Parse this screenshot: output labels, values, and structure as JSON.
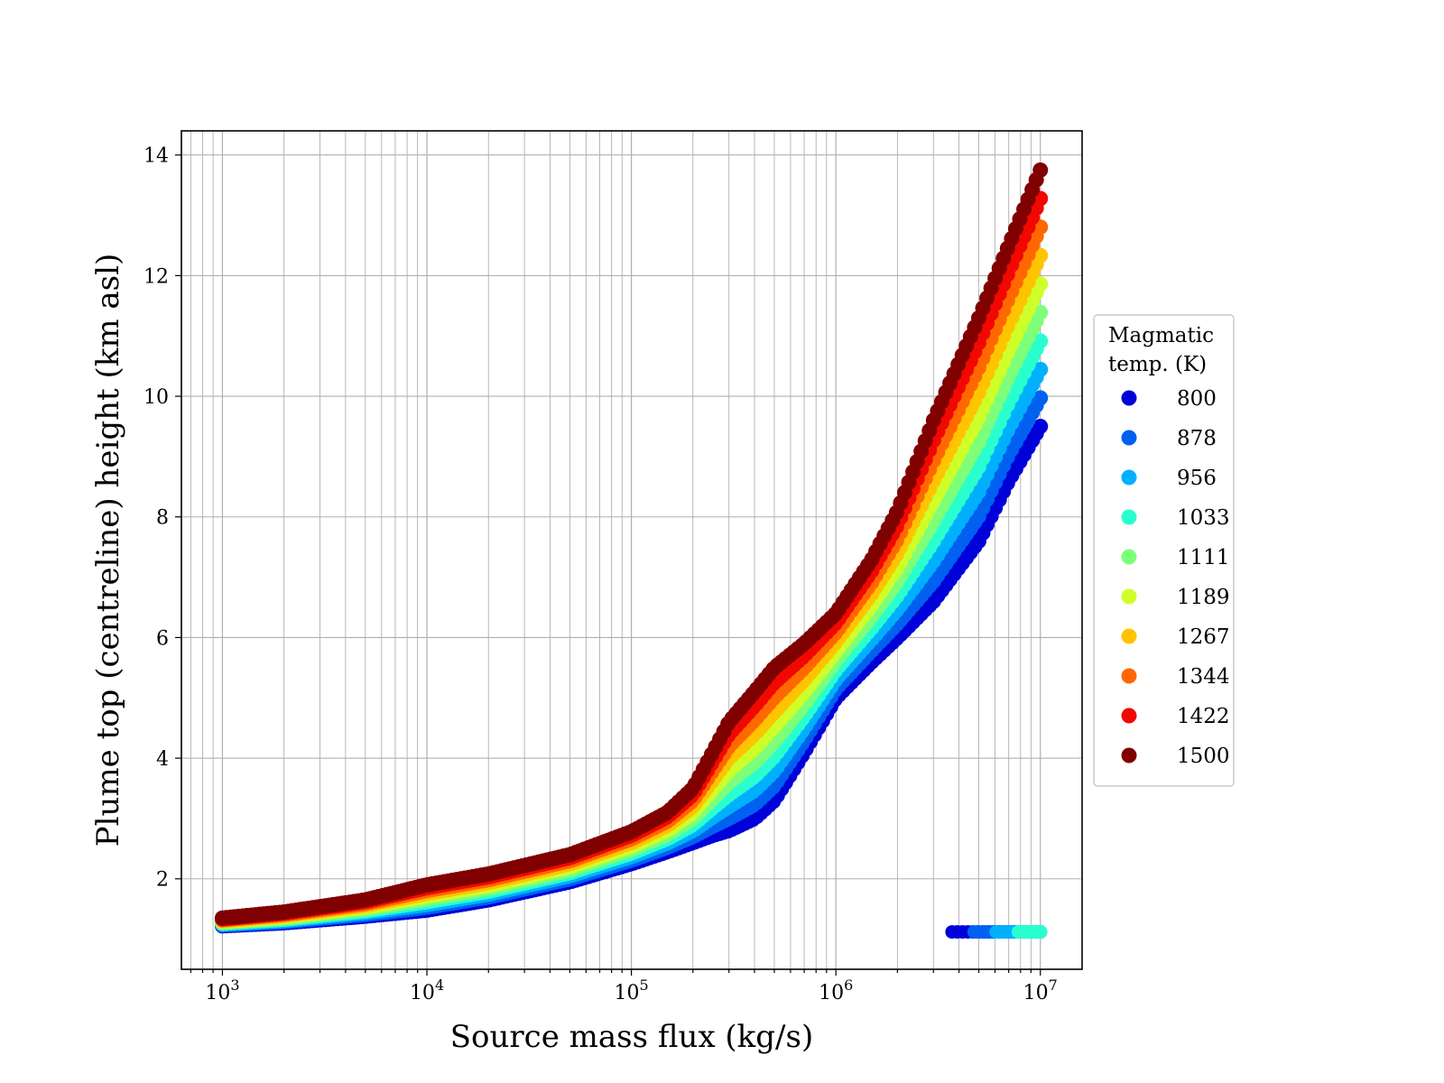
{
  "chart_data": {
    "type": "scatter",
    "xscale": "log",
    "xlim": [
      630,
      16000000
    ],
    "ylim": [
      0.5,
      14.4
    ],
    "xlabel": "Source mass flux (kg/s)",
    "ylabel": "Plume top (centreline) height (km asl)",
    "x_ticks": [
      1000,
      10000,
      100000,
      1000000,
      10000000
    ],
    "x_tick_labels": [
      {
        "base": "10",
        "exp": "3"
      },
      {
        "base": "10",
        "exp": "4"
      },
      {
        "base": "10",
        "exp": "5"
      },
      {
        "base": "10",
        "exp": "6"
      },
      {
        "base": "10",
        "exp": "7"
      }
    ],
    "y_ticks": [
      2,
      4,
      6,
      8,
      10,
      12,
      14
    ],
    "y_tick_labels": [
      "2",
      "4",
      "6",
      "8",
      "10",
      "12",
      "14"
    ],
    "grid": "major and minor",
    "legend": {
      "placement": "outside-right",
      "title_lines": [
        "Magmatic",
        "temp. (K)"
      ]
    },
    "series": [
      {
        "name": "800",
        "color": "#0000d8"
      },
      {
        "name": "878",
        "color": "#0060f0"
      },
      {
        "name": "956",
        "color": "#00b0ff"
      },
      {
        "name": "1033",
        "color": "#29ffce"
      },
      {
        "name": "1111",
        "color": "#7dff7a"
      },
      {
        "name": "1189",
        "color": "#ceff29"
      },
      {
        "name": "1267",
        "color": "#ffc400"
      },
      {
        "name": "1344",
        "color": "#ff6800"
      },
      {
        "name": "1422",
        "color": "#f10800"
      },
      {
        "name": "1500",
        "color": "#800000"
      }
    ],
    "curve_x": [
      1000,
      2000,
      5000,
      10000,
      20000,
      50000,
      100000,
      150000,
      200000,
      250000,
      300000,
      400000,
      500000,
      700000,
      1000000,
      1500000,
      2000000,
      3000000,
      5000000,
      7000000,
      10000000
    ],
    "curve_y_800": [
      1.22,
      1.27,
      1.38,
      1.48,
      1.65,
      1.95,
      2.25,
      2.45,
      2.6,
      2.72,
      2.8,
      3.0,
      3.3,
      4.1,
      5.0,
      5.6,
      6.0,
      6.6,
      7.6,
      8.6,
      9.5
    ],
    "curve_y_1500": [
      1.35,
      1.45,
      1.65,
      1.9,
      2.08,
      2.4,
      2.78,
      3.1,
      3.5,
      4.1,
      4.6,
      5.1,
      5.5,
      5.9,
      6.4,
      7.3,
      8.1,
      9.6,
      11.3,
      12.5,
      13.75
    ],
    "low_cluster": {
      "x_range": [
        3700000,
        10000000
      ],
      "y": 1.12,
      "series_present": [
        "800",
        "878",
        "956",
        "1033"
      ]
    }
  }
}
